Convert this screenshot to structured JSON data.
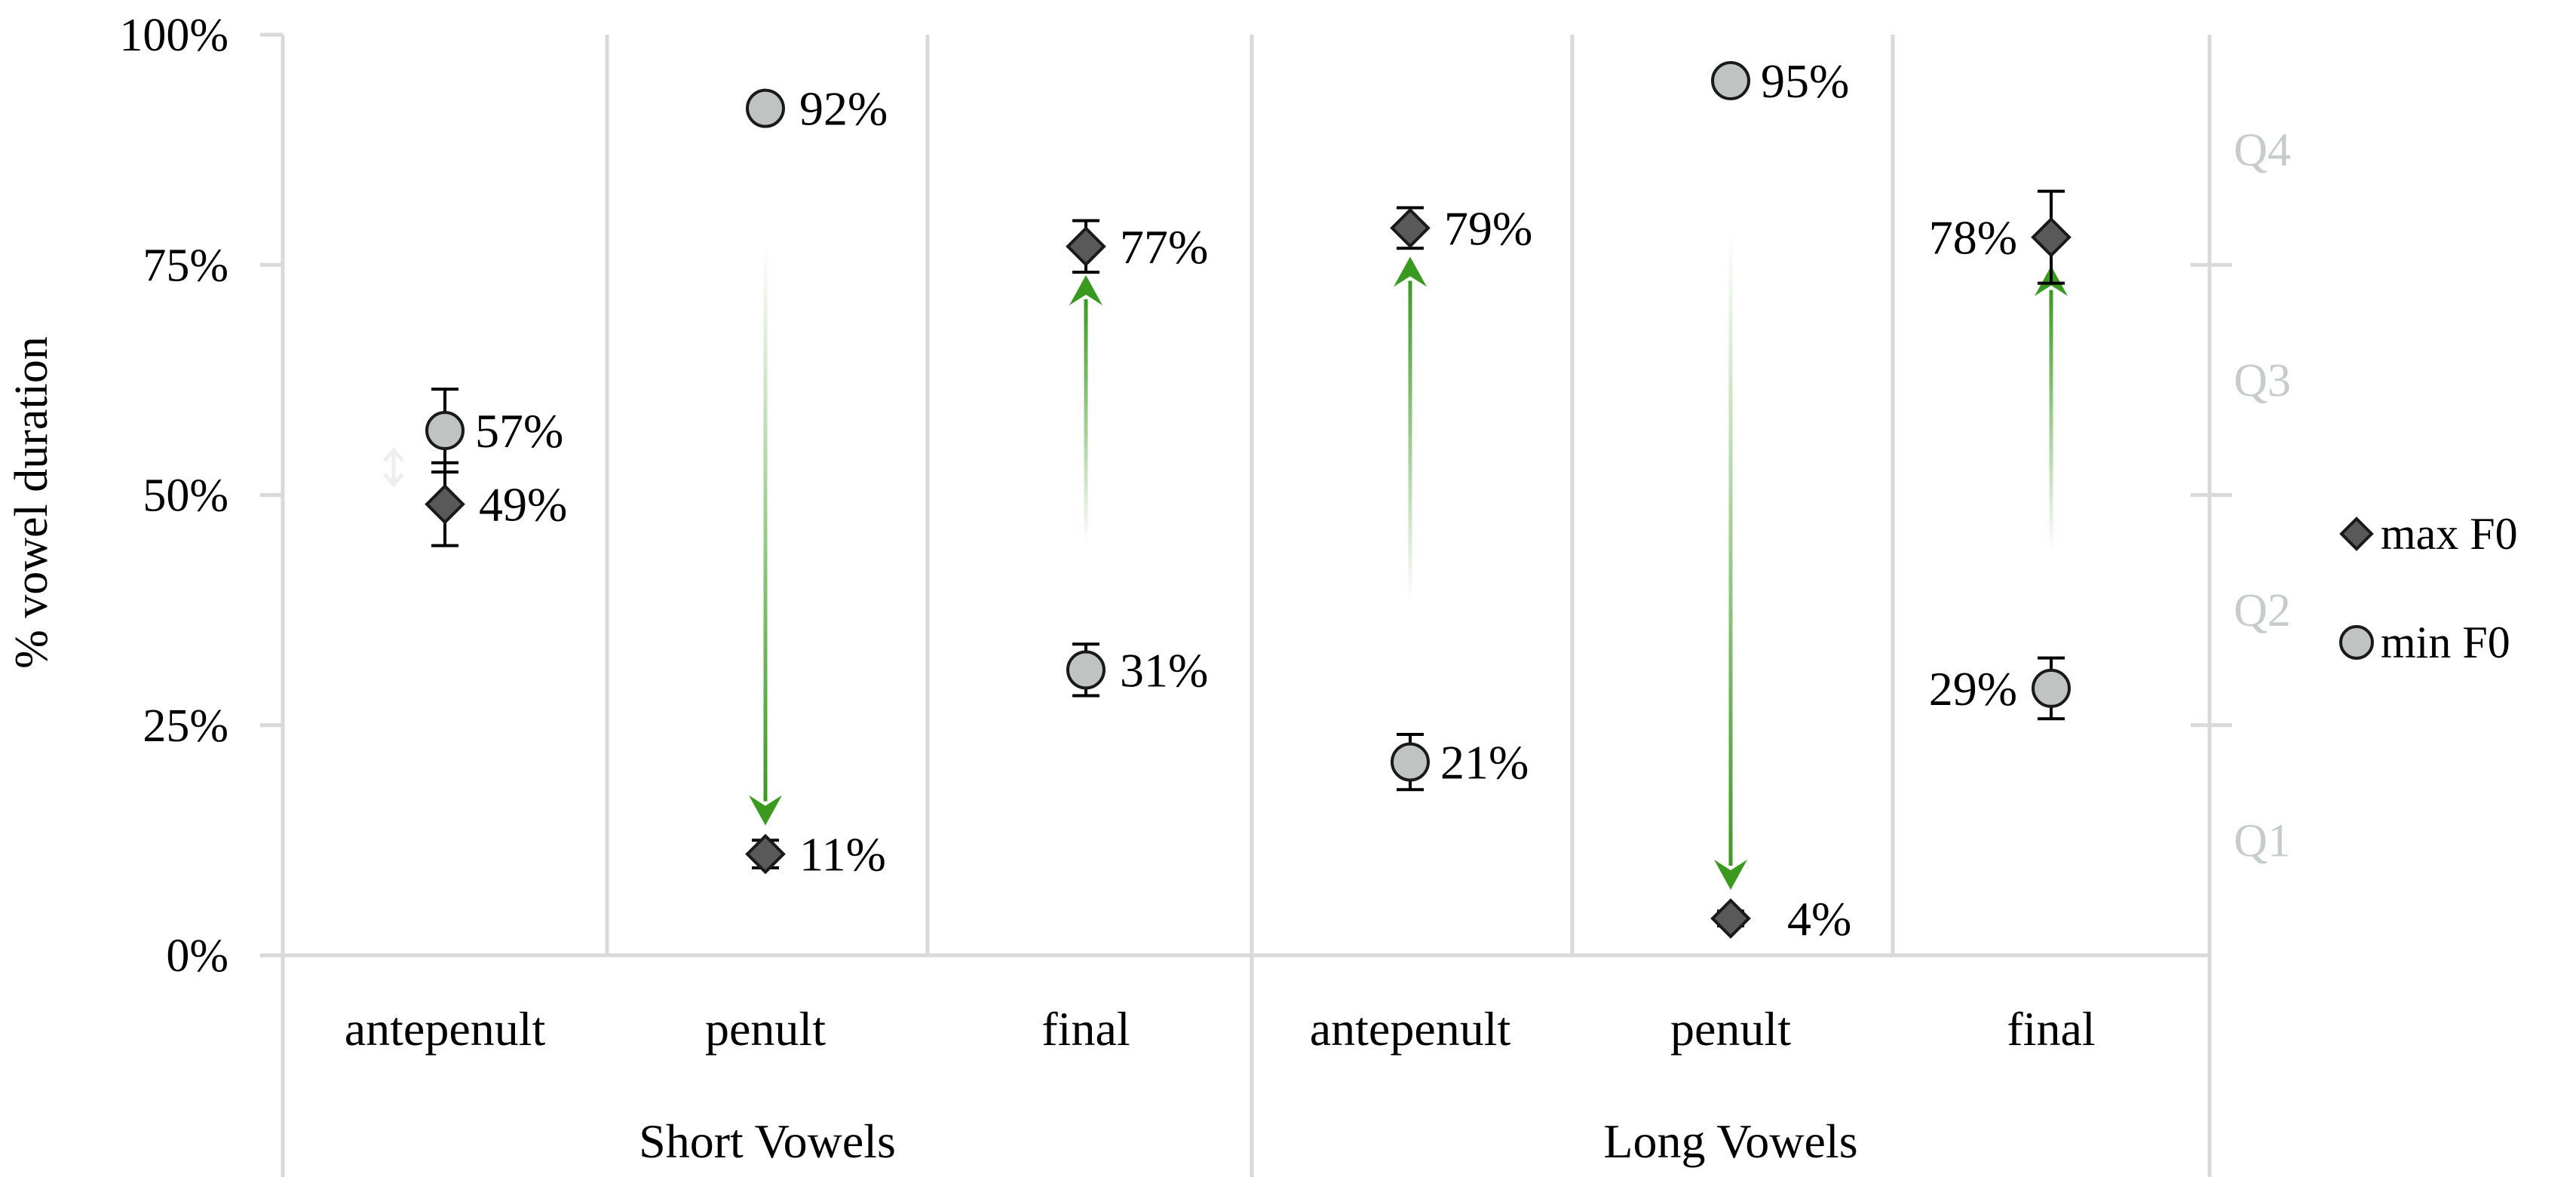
{
  "colors": {
    "max_marker": "#595959",
    "min_marker": "#bfc3c2",
    "arrow": "#3a9a1f",
    "grid": "#d9d9d9",
    "quartile_text": "#c6cbcc",
    "error_bar": "#000000"
  },
  "chart_data": {
    "type": "scatter",
    "title": "",
    "ylabel": "% vowel duration",
    "xlabel": "",
    "ylim": [
      0,
      100
    ],
    "y_ticks": [
      0,
      25,
      50,
      75,
      100
    ],
    "y_tick_labels": [
      "0%",
      "25%",
      "50%",
      "75%",
      "100%"
    ],
    "categories": [
      "antepenult",
      "penult",
      "final",
      "antepenult",
      "penult",
      "final"
    ],
    "groups": [
      {
        "name": "Short Vowels",
        "span": [
          0,
          2
        ]
      },
      {
        "name": "Long Vowels",
        "span": [
          3,
          5
        ]
      }
    ],
    "series": [
      {
        "name": "max F0",
        "marker": "diamond",
        "values": [
          49,
          11,
          77,
          79,
          4,
          78
        ],
        "labels": [
          "49%",
          "11%",
          "77%",
          "79%",
          "4%",
          "78%"
        ],
        "error": [
          4.5,
          1.5,
          2.8,
          2.2,
          0.8,
          5
        ]
      },
      {
        "name": "min F0",
        "marker": "circle",
        "values": [
          57,
          92,
          31,
          21,
          95,
          29
        ],
        "labels": [
          "57%",
          "92%",
          "31%",
          "21%",
          "95%",
          "29%"
        ],
        "error": [
          4.5,
          1.2,
          2.8,
          3,
          0.5,
          3.3
        ]
      }
    ],
    "arrows": [
      {
        "category": 0,
        "from": 57,
        "to": 49,
        "faint": true
      },
      {
        "category": 1,
        "from": 92,
        "to": 11
      },
      {
        "category": 2,
        "from": 31,
        "to": 77
      },
      {
        "category": 3,
        "from": 21,
        "to": 79
      },
      {
        "category": 4,
        "from": 95,
        "to": 4
      },
      {
        "category": 5,
        "from": 29,
        "to": 78
      }
    ],
    "quartile_ticks": [
      25,
      50,
      75
    ],
    "quartiles": [
      {
        "label": "Q4",
        "y": 87.5
      },
      {
        "label": "Q3",
        "y": 62.5
      },
      {
        "label": "Q2",
        "y": 37.5
      },
      {
        "label": "Q1",
        "y": 12.5
      }
    ],
    "legend": {
      "position": "right",
      "entries": [
        "max F0",
        "min F0"
      ]
    }
  }
}
